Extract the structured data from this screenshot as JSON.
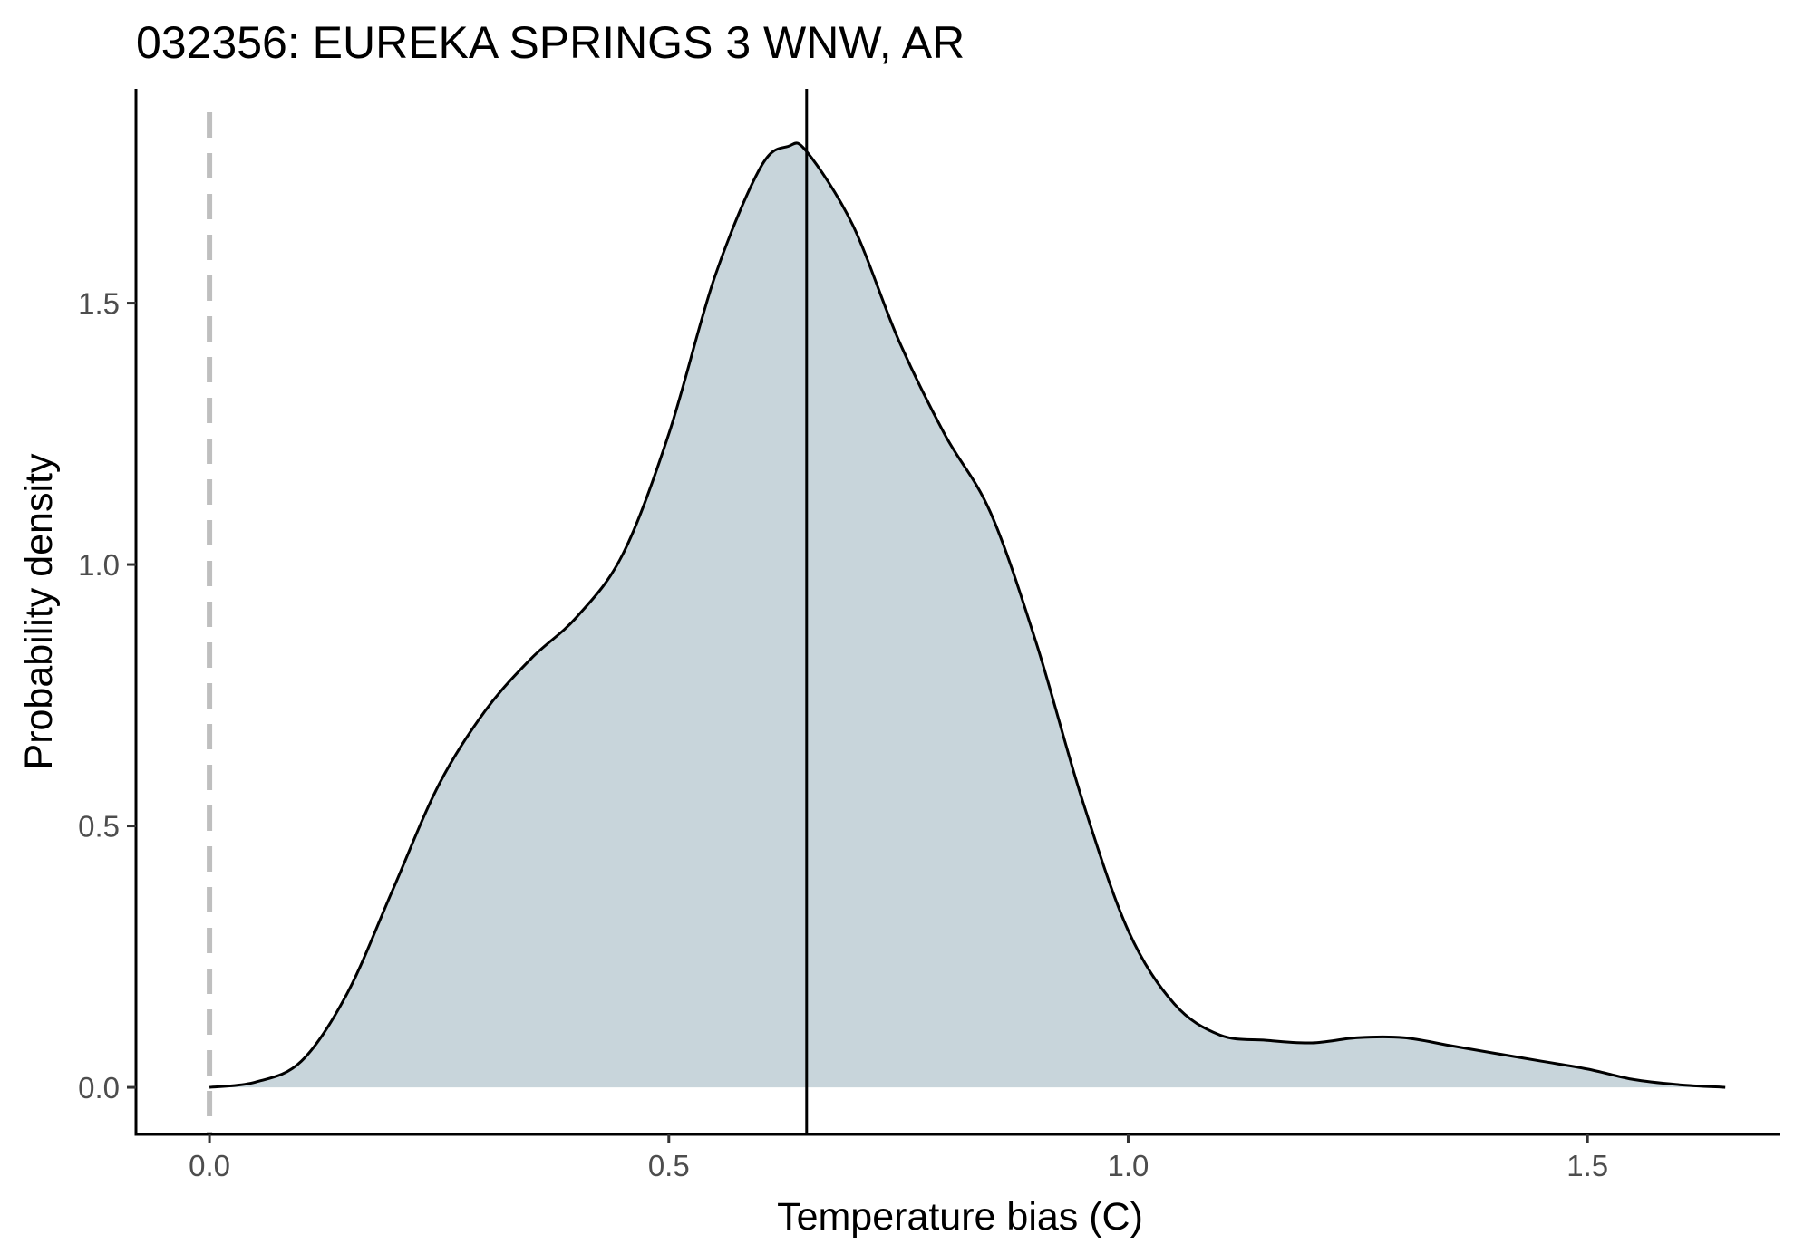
{
  "chart_data": {
    "type": "area",
    "title": "032356: EUREKA SPRINGS 3 WNW, AR",
    "xlabel": "Temperature bias (C)",
    "ylabel": "Probability density",
    "xlim": [
      -0.08,
      1.71
    ],
    "ylim": [
      -0.09,
      1.91
    ],
    "x_ticks": [
      {
        "value": 0.0,
        "label": "0.0"
      },
      {
        "value": 0.5,
        "label": "0.5"
      },
      {
        "value": 1.0,
        "label": "1.0"
      },
      {
        "value": 1.5,
        "label": "1.5"
      }
    ],
    "y_ticks": [
      {
        "value": 0.0,
        "label": "0.0"
      },
      {
        "value": 0.5,
        "label": "0.5"
      },
      {
        "value": 1.0,
        "label": "1.0"
      },
      {
        "value": 1.5,
        "label": "1.5"
      }
    ],
    "grid": false,
    "fill_color": "#c8d5db",
    "line_color": "#000000",
    "reference_line": {
      "x": 0.0,
      "style": "dashed",
      "color": "#bfbfbf"
    },
    "mean_line": {
      "x": 0.65,
      "style": "solid",
      "color": "#000000"
    },
    "density": {
      "x": [
        0.0,
        0.05,
        0.1,
        0.15,
        0.2,
        0.25,
        0.3,
        0.35,
        0.4,
        0.45,
        0.5,
        0.55,
        0.6,
        0.63,
        0.65,
        0.7,
        0.75,
        0.8,
        0.85,
        0.9,
        0.95,
        1.0,
        1.05,
        1.1,
        1.15,
        1.2,
        1.25,
        1.3,
        1.35,
        1.4,
        1.45,
        1.5,
        1.55,
        1.6,
        1.65
      ],
      "y": [
        0.0,
        0.01,
        0.05,
        0.18,
        0.38,
        0.58,
        0.72,
        0.82,
        0.9,
        1.02,
        1.25,
        1.55,
        1.76,
        1.8,
        1.79,
        1.65,
        1.43,
        1.25,
        1.1,
        0.85,
        0.55,
        0.3,
        0.16,
        0.1,
        0.09,
        0.085,
        0.095,
        0.095,
        0.08,
        0.065,
        0.05,
        0.035,
        0.015,
        0.005,
        0.0
      ]
    }
  }
}
